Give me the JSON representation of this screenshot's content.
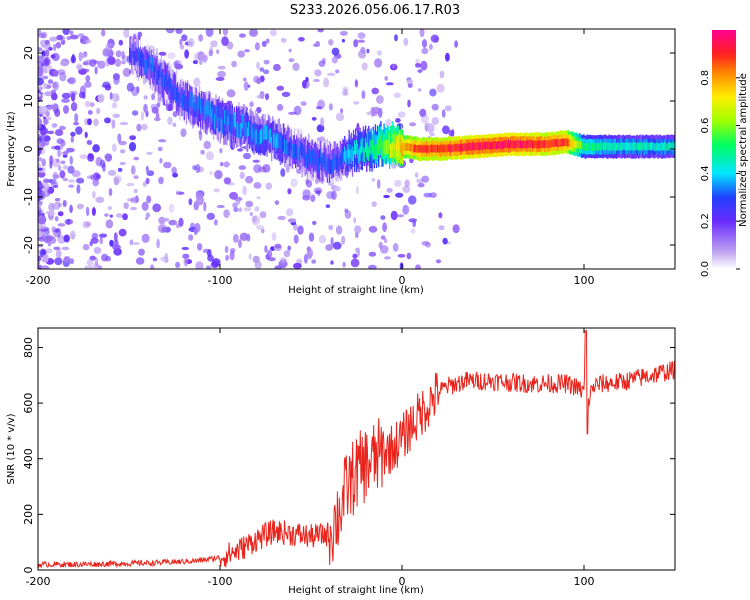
{
  "title": "S233.2026.056.06.17.R03",
  "colors": {
    "snr_line": "#e8241c",
    "ridge_low": "#9d63e8",
    "ridge_high": "#ff1f6a"
  },
  "chart_data": [
    {
      "type": "heatmap",
      "xlabel": "Height of straight line (km)",
      "ylabel": "Frequency (Hz)",
      "xlim": [
        -200,
        150
      ],
      "ylim": [
        -25,
        25
      ],
      "xticks": [
        "-200",
        "-100",
        "0",
        "100"
      ],
      "yticks": [
        "-20",
        "-10",
        "0",
        "10",
        "20"
      ],
      "colorbar": {
        "label": "Normalized spectral amplitude",
        "range": [
          0,
          1
        ],
        "ticks": [
          "0.0",
          "0.2",
          "0.4",
          "0.6",
          "0.8"
        ]
      },
      "ridge": {
        "x": [
          -150,
          -140,
          -120,
          -100,
          -90,
          -80,
          -70,
          -60,
          -50,
          -40,
          -35,
          -30,
          -20,
          -10,
          0,
          10,
          20,
          40,
          60,
          80,
          90,
          100,
          120,
          150
        ],
        "freq": [
          20,
          18,
          10,
          6,
          5,
          3,
          2,
          0,
          -2,
          -3,
          -2,
          -1,
          0,
          1,
          0.5,
          0,
          0,
          0.5,
          1,
          1,
          1.5,
          0.5,
          0.5,
          0.5
        ],
        "amp": [
          0.25,
          0.3,
          0.3,
          0.35,
          0.35,
          0.35,
          0.35,
          0.3,
          0.3,
          0.3,
          0.3,
          0.4,
          0.45,
          0.6,
          0.8,
          0.9,
          0.9,
          0.95,
          0.95,
          0.9,
          0.9,
          0.5,
          0.45,
          0.45
        ]
      }
    },
    {
      "type": "line",
      "xlabel": "Height of straight line (km)",
      "ylabel": "SNR (10 * v/v)",
      "xlim": [
        -200,
        150
      ],
      "ylim": [
        0,
        870
      ],
      "xticks": [
        "-200",
        "-100",
        "0",
        "100"
      ],
      "yticks": [
        "0",
        "200",
        "400",
        "600",
        "800"
      ],
      "series": [
        {
          "name": "SNR",
          "x": [
            -200,
            -180,
            -160,
            -140,
            -120,
            -110,
            -100,
            -90,
            -80,
            -70,
            -60,
            -50,
            -40,
            -35,
            -30,
            -25,
            -20,
            -15,
            -10,
            -5,
            0,
            5,
            10,
            15,
            20,
            25,
            30,
            35,
            40,
            50,
            60,
            70,
            80,
            90,
            95,
            100,
            101,
            102,
            105,
            110,
            120,
            130,
            140,
            150
          ],
          "y": [
            20,
            20,
            22,
            25,
            30,
            35,
            45,
            70,
            110,
            140,
            130,
            120,
            130,
            200,
            300,
            350,
            380,
            400,
            420,
            440,
            470,
            520,
            560,
            600,
            640,
            660,
            670,
            680,
            680,
            680,
            675,
            670,
            670,
            670,
            660,
            640,
            800,
            600,
            660,
            670,
            675,
            690,
            705,
            720
          ]
        }
      ]
    }
  ]
}
